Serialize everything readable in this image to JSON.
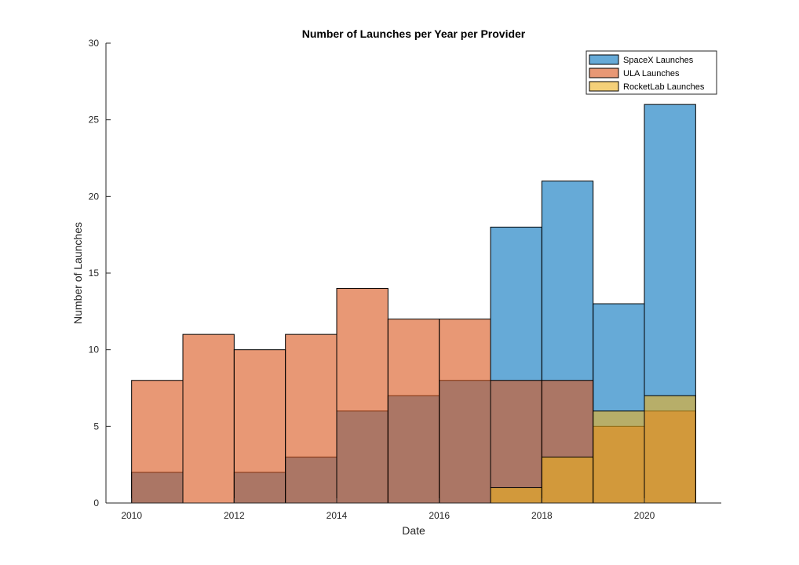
{
  "chart_data": {
    "type": "bar",
    "title": "Number of Launches per Year per Provider",
    "xlabel": "Date",
    "ylabel": "Number of Launches",
    "xlim": [
      2009.5,
      2021.5
    ],
    "ylim": [
      0,
      30
    ],
    "xticks": [
      2010,
      2012,
      2014,
      2016,
      2018,
      2020
    ],
    "yticks": [
      0,
      5,
      10,
      15,
      20,
      25,
      30
    ],
    "bin_edges": [
      2010,
      2011,
      2012,
      2013,
      2014,
      2015,
      2016,
      2017,
      2018,
      2019,
      2020,
      2021
    ],
    "grid": false,
    "legend_position": "top-right",
    "series": [
      {
        "name": "SpaceX Launches",
        "color": "#0072BD",
        "values": [
          2,
          0,
          2,
          3,
          6,
          7,
          8,
          18,
          21,
          13,
          26
        ]
      },
      {
        "name": "ULA Launches",
        "color": "#D95319",
        "values": [
          8,
          11,
          10,
          11,
          14,
          12,
          12,
          8,
          8,
          5,
          6
        ]
      },
      {
        "name": "RocketLab Launches",
        "color": "#EDB120",
        "values": [
          0,
          0,
          0,
          0,
          0,
          0,
          0,
          1,
          3,
          6,
          7
        ]
      }
    ]
  }
}
